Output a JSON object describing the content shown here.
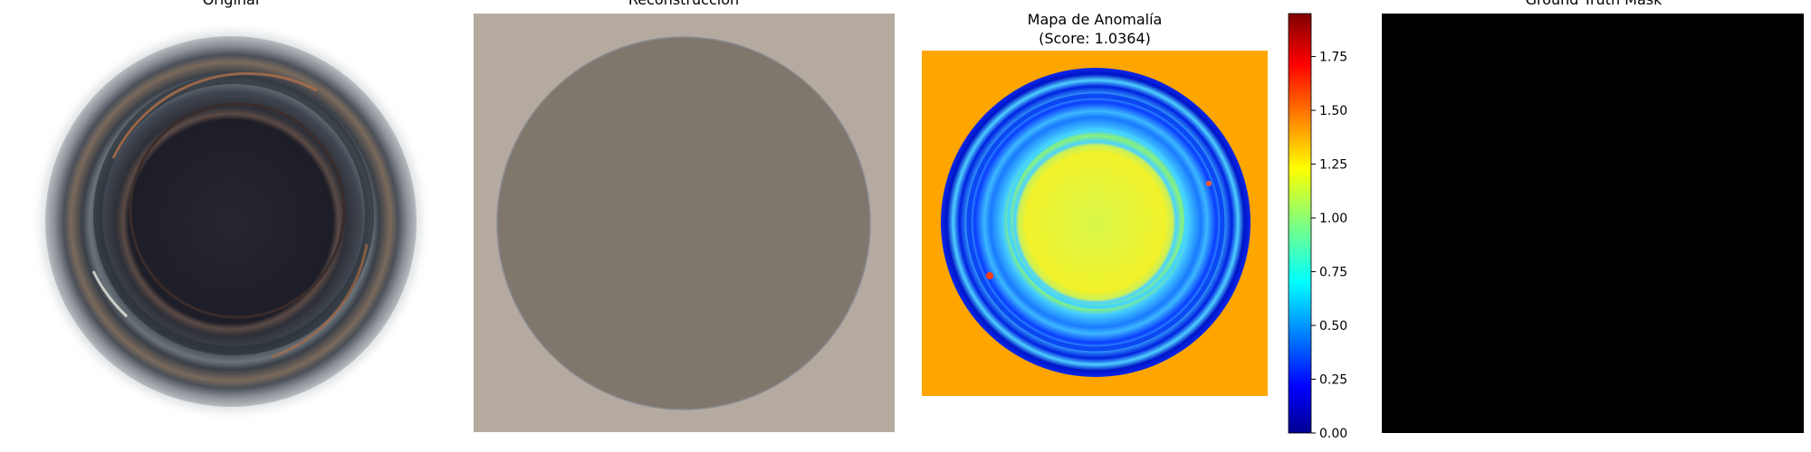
{
  "panels": [
    {
      "title": "Original"
    },
    {
      "title": "Reconstrucción"
    },
    {
      "title_line1": "Mapa de Anomalía",
      "title_line2": "(Score: 1.0364)"
    },
    {
      "title": "Ground Truth Mask"
    }
  ],
  "colorbar": {
    "colormap": "jet",
    "min": 0.0,
    "max": 1.95,
    "ticks": [
      "0.00",
      "0.25",
      "0.50",
      "0.75",
      "1.00",
      "1.25",
      "1.50",
      "1.75"
    ]
  },
  "colors": {
    "reconstruction_background": "#b4aaa0",
    "reconstruction_disc": "#7f776b",
    "anomaly_background": "#ffa500",
    "mask": "#000000"
  }
}
